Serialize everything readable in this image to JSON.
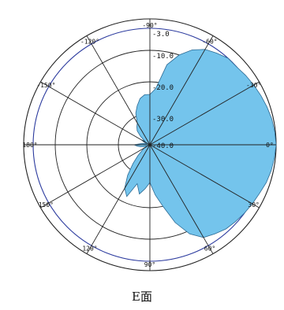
{
  "caption": "E面",
  "chart_data": {
    "type": "polar",
    "title": "",
    "caption": "E面",
    "angle_unit": "deg",
    "angle_labels": [
      {
        "angle": -90,
        "text": "-90°"
      },
      {
        "angle": -60,
        "text": "-60°"
      },
      {
        "angle": -30,
        "text": "-30°"
      },
      {
        "angle": 0,
        "text": "0°"
      },
      {
        "angle": 30,
        "text": "30°"
      },
      {
        "angle": 60,
        "text": "60°"
      },
      {
        "angle": 90,
        "text": "90°"
      },
      {
        "angle": 120,
        "text": "120°"
      },
      {
        "angle": 150,
        "text": "150°"
      },
      {
        "angle": 180,
        "text": "180°"
      },
      {
        "angle": -150,
        "text": "-150°"
      },
      {
        "angle": -120,
        "text": "-120°"
      }
    ],
    "radial_unit": "dB",
    "radial_range": [
      -40,
      0
    ],
    "radial_ticks": [
      {
        "value": -3,
        "text": "-3.0"
      },
      {
        "value": -10,
        "text": "-10.0"
      },
      {
        "value": -20,
        "text": "-20.0"
      },
      {
        "value": -30,
        "text": "-30.0"
      },
      {
        "value": -40,
        "text": "-40.0"
      }
    ],
    "colors": {
      "fill": "#74c4ec",
      "edge": "#2c6a94",
      "grid": "#222222",
      "reference_ring": "#2b3a9e"
    },
    "series": [
      {
        "points": [
          {
            "angle": -90,
            "value": -24
          },
          {
            "angle": -84,
            "value": -22
          },
          {
            "angle": -78,
            "value": -14
          },
          {
            "angle": -72,
            "value": -10
          },
          {
            "angle": -66,
            "value": -7
          },
          {
            "angle": -60,
            "value": -5
          },
          {
            "angle": -54,
            "value": -4
          },
          {
            "angle": -48,
            "value": -3
          },
          {
            "angle": -42,
            "value": -3
          },
          {
            "angle": -36,
            "value": -2.5
          },
          {
            "angle": -30,
            "value": -2
          },
          {
            "angle": -24,
            "value": -1.5
          },
          {
            "angle": -18,
            "value": -1
          },
          {
            "angle": -12,
            "value": -0.5
          },
          {
            "angle": -6,
            "value": -0.2
          },
          {
            "angle": 0,
            "value": 0
          },
          {
            "angle": 6,
            "value": -0.3
          },
          {
            "angle": 12,
            "value": -0.7
          },
          {
            "angle": 18,
            "value": -1.2
          },
          {
            "angle": 24,
            "value": -2
          },
          {
            "angle": 30,
            "value": -2.5
          },
          {
            "angle": 36,
            "value": -3
          },
          {
            "angle": 42,
            "value": -3.5
          },
          {
            "angle": 48,
            "value": -4
          },
          {
            "angle": 54,
            "value": -5
          },
          {
            "angle": 60,
            "value": -6
          },
          {
            "angle": 66,
            "value": -9
          },
          {
            "angle": 72,
            "value": -14
          },
          {
            "angle": 78,
            "value": -20
          },
          {
            "angle": 84,
            "value": -24
          },
          {
            "angle": 90,
            "value": -28
          },
          {
            "angle": 96,
            "value": -26
          },
          {
            "angle": 102,
            "value": -24
          },
          {
            "angle": 108,
            "value": -27
          },
          {
            "angle": 114,
            "value": -22
          },
          {
            "angle": 120,
            "value": -24
          },
          {
            "angle": 126,
            "value": -28
          },
          {
            "angle": 132,
            "value": -32
          },
          {
            "angle": 138,
            "value": -35
          },
          {
            "angle": 144,
            "value": -37
          },
          {
            "angle": 150,
            "value": -38
          },
          {
            "angle": 156,
            "value": -39
          },
          {
            "angle": 162,
            "value": -38
          },
          {
            "angle": 168,
            "value": -37
          },
          {
            "angle": 174,
            "value": -36
          },
          {
            "angle": 180,
            "value": -35
          },
          {
            "angle": -174,
            "value": -37
          },
          {
            "angle": -168,
            "value": -38
          },
          {
            "angle": -162,
            "value": -39
          },
          {
            "angle": -156,
            "value": -38
          },
          {
            "angle": -150,
            "value": -37
          },
          {
            "angle": -144,
            "value": -38
          },
          {
            "angle": -138,
            "value": -36
          },
          {
            "angle": -132,
            "value": -34
          },
          {
            "angle": -126,
            "value": -33
          },
          {
            "angle": -120,
            "value": -32
          },
          {
            "angle": -114,
            "value": -29
          },
          {
            "angle": -108,
            "value": -27
          },
          {
            "angle": -102,
            "value": -25
          },
          {
            "angle": -96,
            "value": -24
          }
        ]
      }
    ]
  }
}
